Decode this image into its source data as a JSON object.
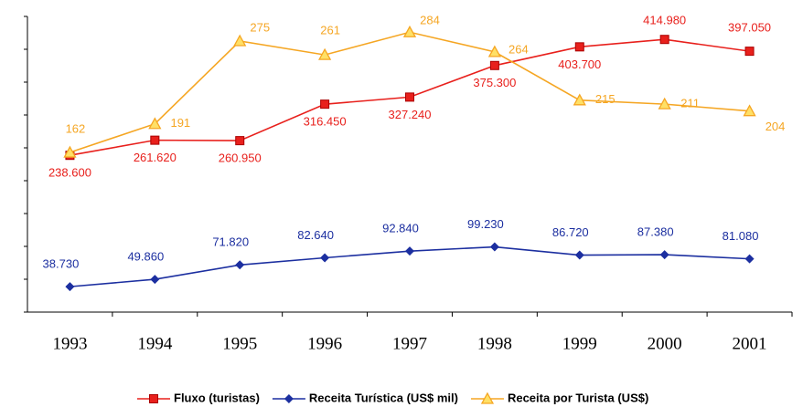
{
  "chart_data": {
    "type": "line",
    "categories": [
      "1993",
      "1994",
      "1995",
      "1996",
      "1997",
      "1998",
      "1999",
      "2000",
      "2001"
    ],
    "ylim": [
      0,
      450
    ],
    "yticks": [
      0,
      50,
      100,
      150,
      200,
      250,
      300,
      350,
      400,
      450
    ],
    "y2lim": [
      0,
      300
    ],
    "series": [
      {
        "name": "Fluxo (turistas)",
        "color": "#e8201c",
        "marker": "square",
        "values": [
          238.6,
          261.62,
          260.95,
          316.45,
          327.24,
          375.3,
          403.7,
          414.98,
          397.05
        ],
        "value_labels": [
          "238.600",
          "261.620",
          "260.950",
          "316.450",
          "327.240",
          "375.300",
          "403.700",
          "414.980",
          "397.050"
        ]
      },
      {
        "name": "Receita Turística (US$ mil)",
        "color": "#1c2fa0",
        "marker": "diamond",
        "values": [
          38.73,
          49.86,
          71.82,
          82.64,
          92.84,
          99.23,
          86.72,
          87.38,
          81.08
        ],
        "value_labels": [
          "38.730",
          "49.860",
          "71.820",
          "82.640",
          "92.840",
          "99.230",
          "86.720",
          "87.380",
          "81.080"
        ]
      },
      {
        "name": "Receita por Turista (US$)",
        "color": "#f5a623",
        "marker": "triangle",
        "axis": "y2",
        "values": [
          162,
          191,
          275,
          261,
          284,
          264,
          215,
          211,
          204
        ]
      }
    ]
  }
}
